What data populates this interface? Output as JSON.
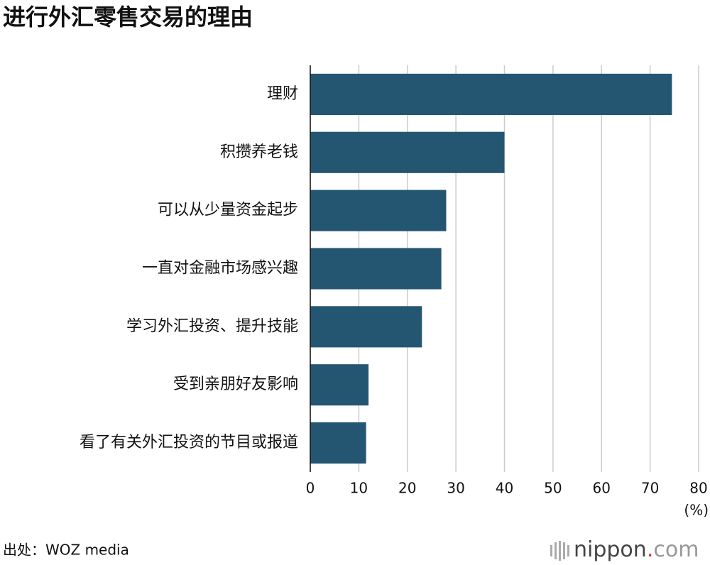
{
  "chart_data": {
    "type": "bar",
    "orientation": "horizontal",
    "title": "进行外汇零售交易的理由",
    "categories": [
      "理财",
      "积攒养老钱",
      "可以从少量资金起步",
      "一直对金融市场感兴趣",
      "学习外汇投资、提升技能",
      "受到亲朋好友影响",
      "看了有关外汇投资的节目或报道"
    ],
    "values": [
      74.5,
      40,
      28,
      27,
      23,
      12,
      11.5
    ],
    "color": "#245672",
    "xlim": [
      0,
      80
    ],
    "xticks": [
      0,
      10,
      20,
      30,
      40,
      50,
      60,
      70,
      80
    ],
    "xlabel": "(%)",
    "grid": true,
    "source": "出处：WOZ media",
    "brand": [
      "nippon",
      ".",
      "com"
    ]
  }
}
